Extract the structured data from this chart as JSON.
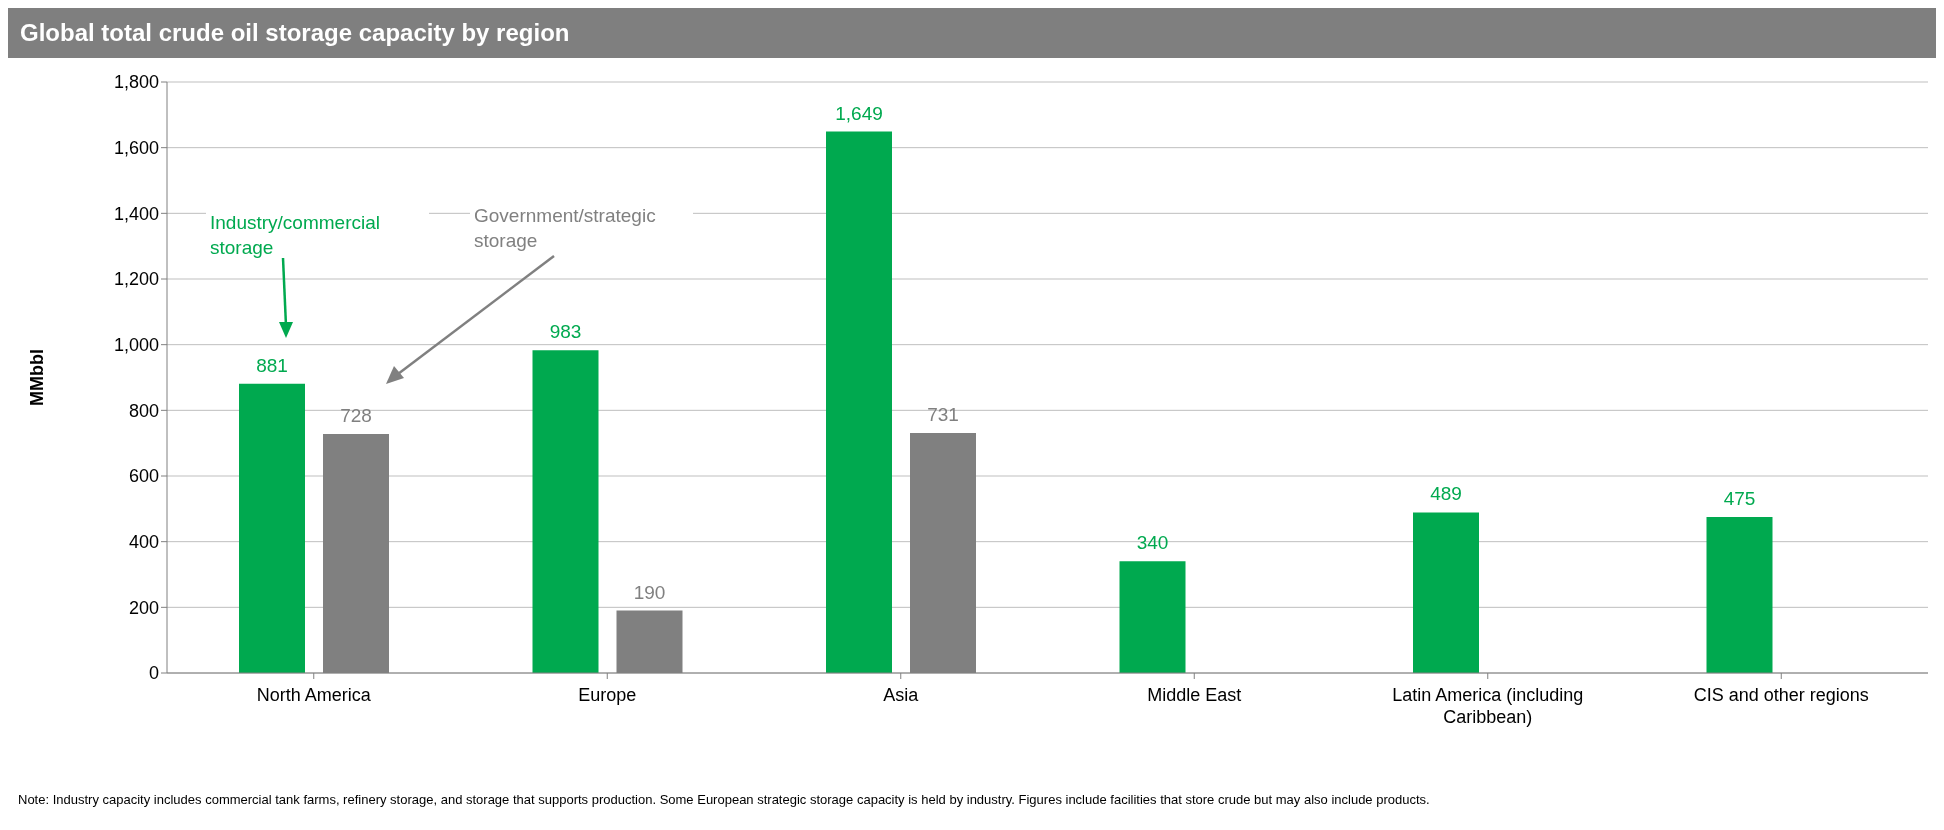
{
  "chart_data": {
    "type": "bar",
    "title": "Global total crude oil storage capacity by region",
    "ylabel": "MMbbl",
    "categories": [
      "North America",
      "Europe",
      "Asia",
      "Middle East",
      "Latin America (including Caribbean)",
      "CIS and other regions"
    ],
    "series": [
      {
        "name": "Industry/commercial storage",
        "color": "#00a94f",
        "values": [
          881,
          983,
          1649,
          340,
          489,
          475
        ],
        "value_labels": [
          "881",
          "983",
          "1,649",
          "340",
          "489",
          "475"
        ]
      },
      {
        "name": "Government/strategic storage",
        "color": "#808080",
        "values": [
          728,
          190,
          731,
          null,
          null,
          null
        ],
        "value_labels": [
          "728",
          "190",
          "731",
          null,
          null,
          null
        ]
      }
    ],
    "ylim": [
      0,
      1800
    ],
    "yticks": [
      0,
      200,
      400,
      600,
      800,
      {
        "value": 1000,
        "label": "1,000"
      },
      {
        "value": 1200,
        "label": "1,200"
      },
      {
        "value": 1400,
        "label": "1,400"
      },
      {
        "value": 1600,
        "label": "1,600"
      },
      {
        "value": 1800,
        "label": "1,800"
      }
    ],
    "grid": "y",
    "legend": false,
    "annotations": [
      "Note: Industry capacity includes commercial tank farms, refinery storage, and storage that supports production. Some European strategic storage capacity is held by industry. Figures include facilities that store crude but may also include products."
    ]
  }
}
